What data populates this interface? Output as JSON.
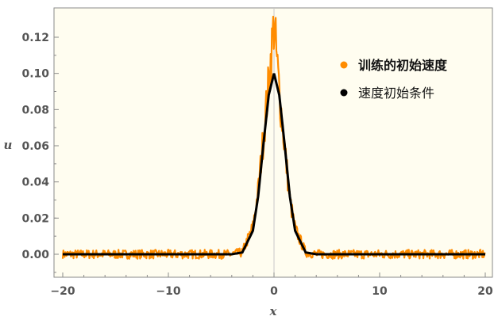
{
  "chart_data": {
    "type": "line",
    "xlabel": "x",
    "ylabel": "u",
    "xlim": [
      -20,
      20
    ],
    "ylim": [
      -0.014,
      0.136
    ],
    "x_ticks": [
      -20,
      -10,
      0,
      10,
      20
    ],
    "y_ticks": [
      0.0,
      0.02,
      0.04,
      0.06,
      0.08,
      0.1,
      0.12
    ],
    "x_tick_labels": [
      "−20",
      "−10",
      "0",
      "10",
      "20"
    ],
    "y_tick_labels": [
      "0.00",
      "0.02",
      "0.04",
      "0.06",
      "0.08",
      "0.10",
      "0.12"
    ],
    "grid": false,
    "legend_position": "top-right",
    "series": [
      {
        "name": "训练的初始速度",
        "color": "#ff8c00",
        "style": "noisy samples",
        "x": [
          -20,
          -18,
          -16,
          -14,
          -12,
          -10,
          -8,
          -6,
          -4,
          -3,
          -2,
          -1.5,
          -1,
          -0.5,
          0,
          0.5,
          1,
          1.5,
          2,
          3,
          4,
          6,
          8,
          10,
          12,
          14,
          16,
          18,
          20
        ],
        "y": [
          0.0,
          0.0,
          0.0,
          0.0,
          0.0,
          0.0,
          0.0,
          0.0,
          0.0,
          0.001,
          0.015,
          0.035,
          0.065,
          0.095,
          0.128,
          0.09,
          0.06,
          0.03,
          0.014,
          0.001,
          0.0,
          0.0,
          0.0,
          0.0,
          0.0,
          0.0,
          0.0,
          0.0,
          0.0
        ]
      },
      {
        "name": "速度初始条件",
        "color": "#000000",
        "style": "smooth curve",
        "x": [
          -20,
          -4,
          -3,
          -2,
          -1.5,
          -1,
          -0.5,
          0,
          0.5,
          1,
          1.5,
          2,
          3,
          4,
          20
        ],
        "y": [
          0.0,
          0.0,
          0.001,
          0.013,
          0.032,
          0.061,
          0.088,
          0.1,
          0.088,
          0.061,
          0.032,
          0.013,
          0.001,
          0.0,
          0.0
        ]
      }
    ]
  }
}
